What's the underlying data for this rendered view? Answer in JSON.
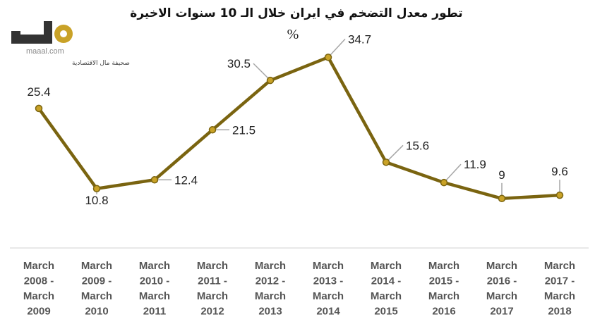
{
  "logo": {
    "site": "maaal.com",
    "tagline": "صحيفة مال الاقتصادية",
    "brand_color": "#c9a227",
    "dark_color": "#333333"
  },
  "chart_data": {
    "type": "line",
    "title": "تطور معدل التضخم في ايران خلال الـ 10 سنوات الاخيرة",
    "subtitle": "%",
    "categories": [
      [
        "March",
        "2008 -",
        "March",
        "2009"
      ],
      [
        "March",
        "2009 -",
        "March",
        "2010"
      ],
      [
        "March",
        "2010 -",
        "March",
        "2011"
      ],
      [
        "March",
        "2011 -",
        "March",
        "2012"
      ],
      [
        "March",
        "2012 -",
        "March",
        "2013"
      ],
      [
        "March",
        "2013 -",
        "March",
        "2014"
      ],
      [
        "March",
        "2014 -",
        "March",
        "2015"
      ],
      [
        "March",
        "2015 -",
        "March",
        "2016"
      ],
      [
        "March",
        "2016 -",
        "March",
        "2017"
      ],
      [
        "March",
        "2017 -",
        "March",
        "2018"
      ]
    ],
    "series": [
      {
        "values": [
          25.4,
          10.8,
          12.4,
          21.5,
          30.5,
          34.7,
          15.6,
          11.9,
          9,
          9.6
        ],
        "labels": [
          "25.4",
          "10.8",
          "12.4",
          "21.5",
          "30.5",
          "34.7",
          "15.6",
          "11.9",
          "9",
          "9.6"
        ],
        "color": "#7a6410",
        "marker_color": "#c9a227"
      }
    ],
    "grid": false,
    "legend": "none",
    "ylim": [
      0,
      40
    ]
  }
}
